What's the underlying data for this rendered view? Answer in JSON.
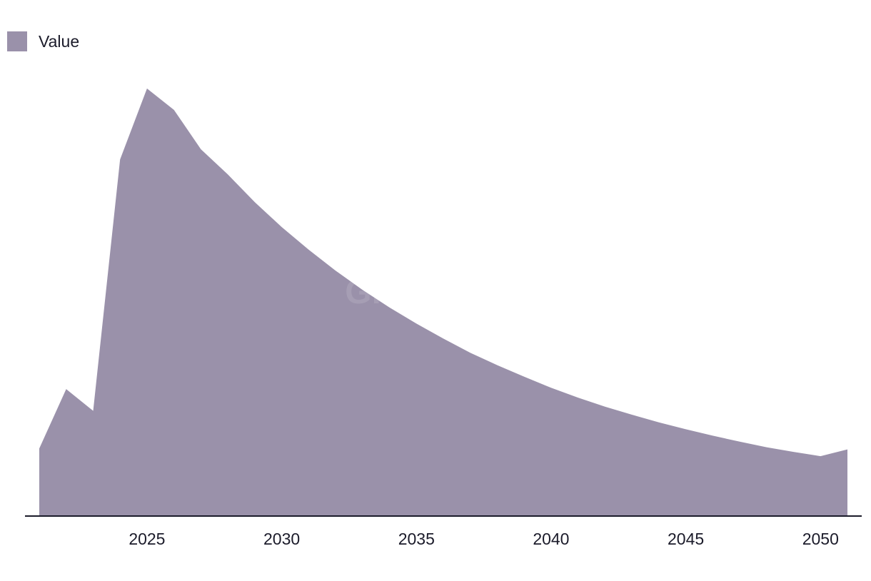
{
  "legend": {
    "label": "Value",
    "color": "#9a91aa"
  },
  "watermark": {
    "text": "GlobalData"
  },
  "chart_data": {
    "type": "area",
    "x": [
      2021,
      2022,
      2023,
      2024,
      2025,
      2026,
      2027,
      2028,
      2029,
      2030,
      2031,
      2032,
      2033,
      2034,
      2035,
      2036,
      2037,
      2038,
      2039,
      2040,
      2041,
      2042,
      2043,
      2044,
      2045,
      2046,
      2047,
      2048,
      2049,
      2050,
      2051
    ],
    "series": [
      {
        "name": "Value",
        "values": [
          15.8,
          29.7,
          24.6,
          83.4,
          100,
          95.0,
          85.8,
          79.9,
          73.4,
          67.6,
          62.3,
          57.4,
          52.9,
          48.8,
          45.0,
          41.5,
          38.2,
          35.3,
          32.6,
          30.0,
          27.7,
          25.6,
          23.7,
          21.9,
          20.3,
          18.8,
          17.4,
          16.1,
          15.0,
          14.0,
          15.6
        ],
        "color": "#9a91aa"
      }
    ],
    "xticks": [
      "2025",
      "2030",
      "2035",
      "2040",
      "2045",
      "2050"
    ],
    "ylim": [
      0,
      100
    ],
    "legend_position": "top-left",
    "grid": false
  }
}
